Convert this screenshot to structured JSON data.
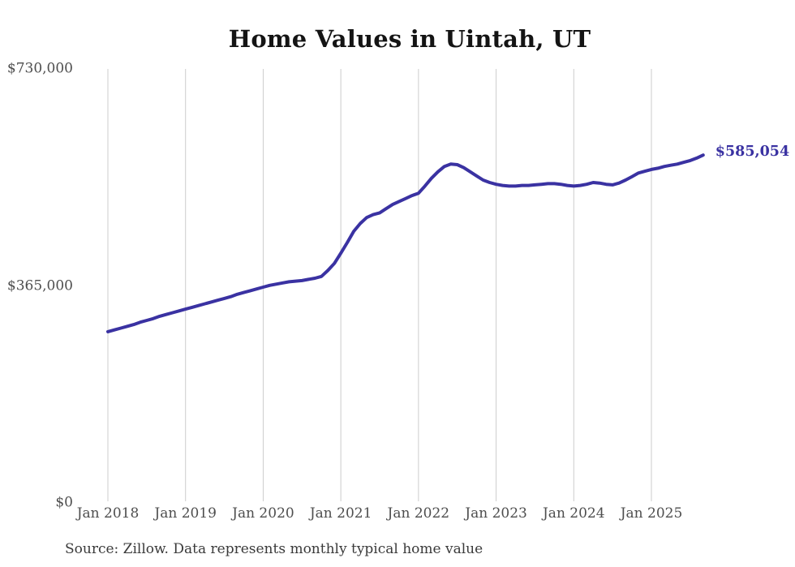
{
  "chart_data": {
    "type": "line",
    "title": "Home Values in Uintah, UT",
    "source": "Source: Zillow. Data represents monthly typical home value",
    "x_unit": "month",
    "x_start": "2018-01",
    "x_end": "2025-09",
    "x_tick_labels": [
      "Jan 2018",
      "Jan 2019",
      "Jan 2020",
      "Jan 2021",
      "Jan 2022",
      "Jan 2023",
      "Jan 2024",
      "Jan 2025"
    ],
    "y_ticks": [
      {
        "label": "$0",
        "value": 0
      },
      {
        "label": "$365,000",
        "value": 365000
      },
      {
        "label": "$730,000",
        "value": 730000
      }
    ],
    "ylim": [
      0,
      730000
    ],
    "grid": "vertical-only",
    "legend": false,
    "line_color": "#3a32a2",
    "grid_color": "#cccccc",
    "annotation": {
      "text": "$585,054",
      "value": 585054,
      "position": "end-of-line"
    },
    "series": [
      {
        "name": "Typical home value",
        "values": [
          288000,
          291000,
          294000,
          297000,
          300000,
          304000,
          307000,
          310000,
          314000,
          317000,
          320000,
          323000,
          326000,
          329000,
          332000,
          335000,
          338000,
          341000,
          344000,
          347000,
          351000,
          354000,
          357000,
          360000,
          363000,
          366000,
          368000,
          370000,
          372000,
          373000,
          374000,
          376000,
          378000,
          381000,
          391000,
          403000,
          420000,
          438000,
          457000,
          470000,
          480000,
          485000,
          488000,
          495000,
          502000,
          507000,
          512000,
          517000,
          521000,
          533000,
          546000,
          557000,
          566000,
          570000,
          569000,
          564000,
          557000,
          550000,
          543000,
          539000,
          536000,
          534000,
          533000,
          533000,
          534000,
          534000,
          535000,
          536000,
          537000,
          537000,
          536000,
          534000,
          533000,
          534000,
          536000,
          539000,
          538000,
          536000,
          535000,
          538000,
          543000,
          549000,
          555000,
          558000,
          561000,
          563000,
          566000,
          568000,
          570000,
          573000,
          576000,
          580000,
          585054
        ]
      }
    ]
  }
}
